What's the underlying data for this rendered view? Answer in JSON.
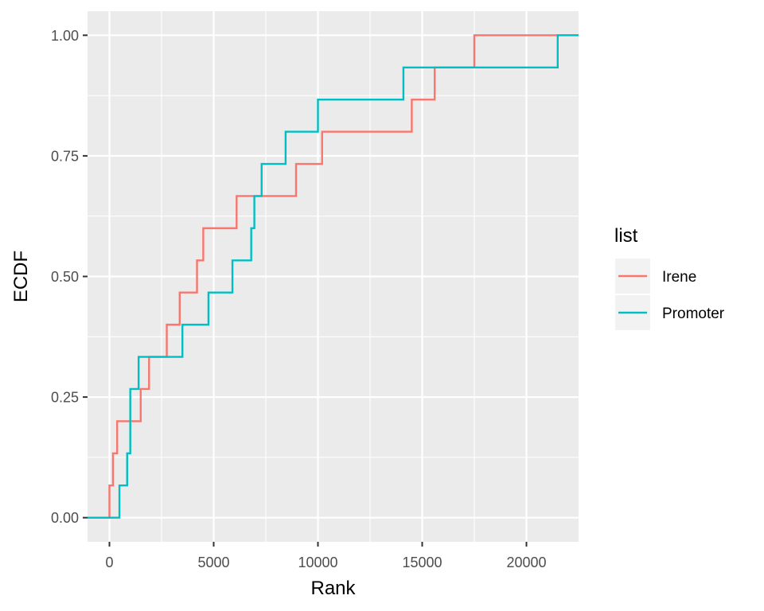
{
  "chart_data": {
    "type": "line",
    "subtype": "ecdf-step",
    "title": "",
    "xlabel": "Rank",
    "ylabel": "ECDF",
    "xlim": [
      -1050,
      22500
    ],
    "ylim": [
      -0.05,
      1.05
    ],
    "x_ticks": [
      0,
      5000,
      10000,
      15000,
      20000
    ],
    "x_tick_labels": [
      "0",
      "5000",
      "10000",
      "15000",
      "20000"
    ],
    "y_ticks": [
      0,
      0.25,
      0.5,
      0.75,
      1
    ],
    "y_tick_labels": [
      "0.00",
      "0.25",
      "0.50",
      "0.75",
      "1.00"
    ],
    "grid": true,
    "panel_background": "#ebebeb",
    "legend": {
      "title": "list",
      "position": "right"
    },
    "series": [
      {
        "name": "Irene",
        "color": "#F8766D",
        "x": [
          0,
          170,
          370,
          1500,
          1900,
          2750,
          3370,
          4200,
          4500,
          6100,
          8950,
          10200,
          14500,
          15600,
          17500
        ],
        "y": [
          0.0667,
          0.1333,
          0.2,
          0.2667,
          0.3333,
          0.4,
          0.4667,
          0.5333,
          0.6,
          0.6667,
          0.7333,
          0.8,
          0.8667,
          0.9333,
          1.0
        ]
      },
      {
        "name": "Promoter",
        "color": "#00BFC4",
        "x": [
          480,
          850,
          1000,
          1400,
          3500,
          4750,
          5900,
          6800,
          6950,
          7300,
          8450,
          10000,
          14100,
          21500
        ],
        "y": [
          0.0667,
          0.1333,
          0.2667,
          0.3333,
          0.4,
          0.4667,
          0.5333,
          0.6,
          0.6667,
          0.7333,
          0.8,
          0.8667,
          0.9333,
          1.0
        ]
      }
    ]
  }
}
